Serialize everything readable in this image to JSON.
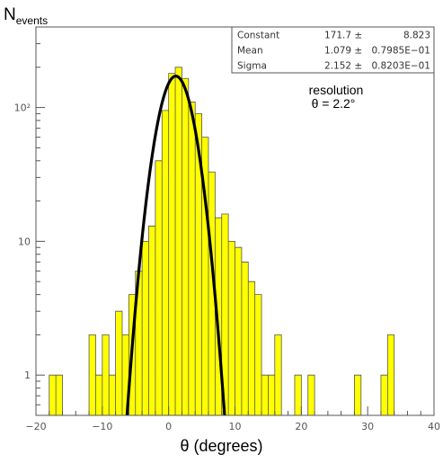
{
  "chart_data": {
    "type": "bar",
    "ylabel_main": "N",
    "ylabel_sub": "events",
    "xlabel": "θ  (degrees)",
    "xlim": [
      -20,
      40
    ],
    "ylim": [
      0.5,
      400
    ],
    "yscale": "log",
    "x_ticks": [
      -20,
      -10,
      0,
      10,
      20,
      30,
      40
    ],
    "y_ticks": [
      {
        "value": 1,
        "label": "1"
      },
      {
        "value": 10,
        "label": "10"
      },
      {
        "value": 100,
        "label": "10²"
      }
    ],
    "bin_width": 1,
    "bins": [
      {
        "x": -17.5,
        "y": 1
      },
      {
        "x": -16.5,
        "y": 1
      },
      {
        "x": -11.5,
        "y": 2
      },
      {
        "x": -10.5,
        "y": 1
      },
      {
        "x": -9.5,
        "y": 2
      },
      {
        "x": -8.5,
        "y": 1
      },
      {
        "x": -7.5,
        "y": 3
      },
      {
        "x": -6.5,
        "y": 2
      },
      {
        "x": -5.5,
        "y": 4
      },
      {
        "x": -4.5,
        "y": 6
      },
      {
        "x": -3.5,
        "y": 10
      },
      {
        "x": -2.5,
        "y": 13
      },
      {
        "x": -1.5,
        "y": 40
      },
      {
        "x": -0.5,
        "y": 95
      },
      {
        "x": 0.5,
        "y": 180
      },
      {
        "x": 1.5,
        "y": 200
      },
      {
        "x": 2.5,
        "y": 165
      },
      {
        "x": 3.5,
        "y": 110
      },
      {
        "x": 4.5,
        "y": 90
      },
      {
        "x": 5.5,
        "y": 60
      },
      {
        "x": 6.5,
        "y": 33
      },
      {
        "x": 7.5,
        "y": 15
      },
      {
        "x": 8.5,
        "y": 16
      },
      {
        "x": 9.5,
        "y": 10
      },
      {
        "x": 10.5,
        "y": 9
      },
      {
        "x": 11.5,
        "y": 7
      },
      {
        "x": 12.5,
        "y": 5
      },
      {
        "x": 13.5,
        "y": 4
      },
      {
        "x": 14.5,
        "y": 1
      },
      {
        "x": 15.5,
        "y": 1
      },
      {
        "x": 16.5,
        "y": 2
      },
      {
        "x": 19.5,
        "y": 1
      },
      {
        "x": 21.5,
        "y": 1
      },
      {
        "x": 28.5,
        "y": 1
      },
      {
        "x": 32.5,
        "y": 1
      },
      {
        "x": 33.5,
        "y": 2
      }
    ],
    "fit": {
      "type": "gaussian",
      "constant": 171.7,
      "mean": 1.079,
      "sigma": 2.152
    },
    "stats": [
      {
        "name": "Constant",
        "value": "171.7",
        "error": "8.823"
      },
      {
        "name": "Mean",
        "value": "1.079",
        "error": "0.7985E−01"
      },
      {
        "name": "Sigma",
        "value": "2.152",
        "error": "0.8203E−01"
      }
    ],
    "annotation": {
      "line1": "resolution",
      "line2": "θ = 2.2°"
    },
    "colors": {
      "fill": "#ffff00",
      "fit": "#000000",
      "frame": "#555555"
    }
  }
}
